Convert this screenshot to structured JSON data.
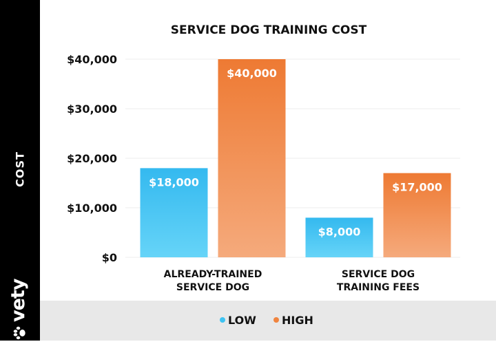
{
  "sidebar": {
    "ylabel": "COST",
    "brand": "vety"
  },
  "colors": {
    "low": "#3fc3f2",
    "high": "#f0843f",
    "sidebar": "#000000",
    "legend_bg": "#e8e8e8"
  },
  "chart_data": {
    "type": "bar",
    "title": "SERVICE DOG TRAINING COST",
    "ylabel": "COST",
    "categories": [
      [
        "ALREADY-TRAINED",
        "SERVICE DOG"
      ],
      [
        "SERVICE DOG",
        "TRAINING FEES"
      ]
    ],
    "series": [
      {
        "name": "LOW",
        "values": [
          18000,
          8000
        ],
        "labels": [
          "$18,000",
          "$8,000"
        ]
      },
      {
        "name": "HIGH",
        "values": [
          40000,
          17000
        ],
        "labels": [
          "$40,000",
          "$17,000"
        ]
      }
    ],
    "yticks": [
      0,
      10000,
      20000,
      30000,
      40000
    ],
    "ytick_labels": [
      "$0",
      "$10,000",
      "$20,000",
      "$30,000",
      "$40,000"
    ],
    "ylim": [
      0,
      40000
    ],
    "grid": true,
    "legend": "bottom"
  }
}
